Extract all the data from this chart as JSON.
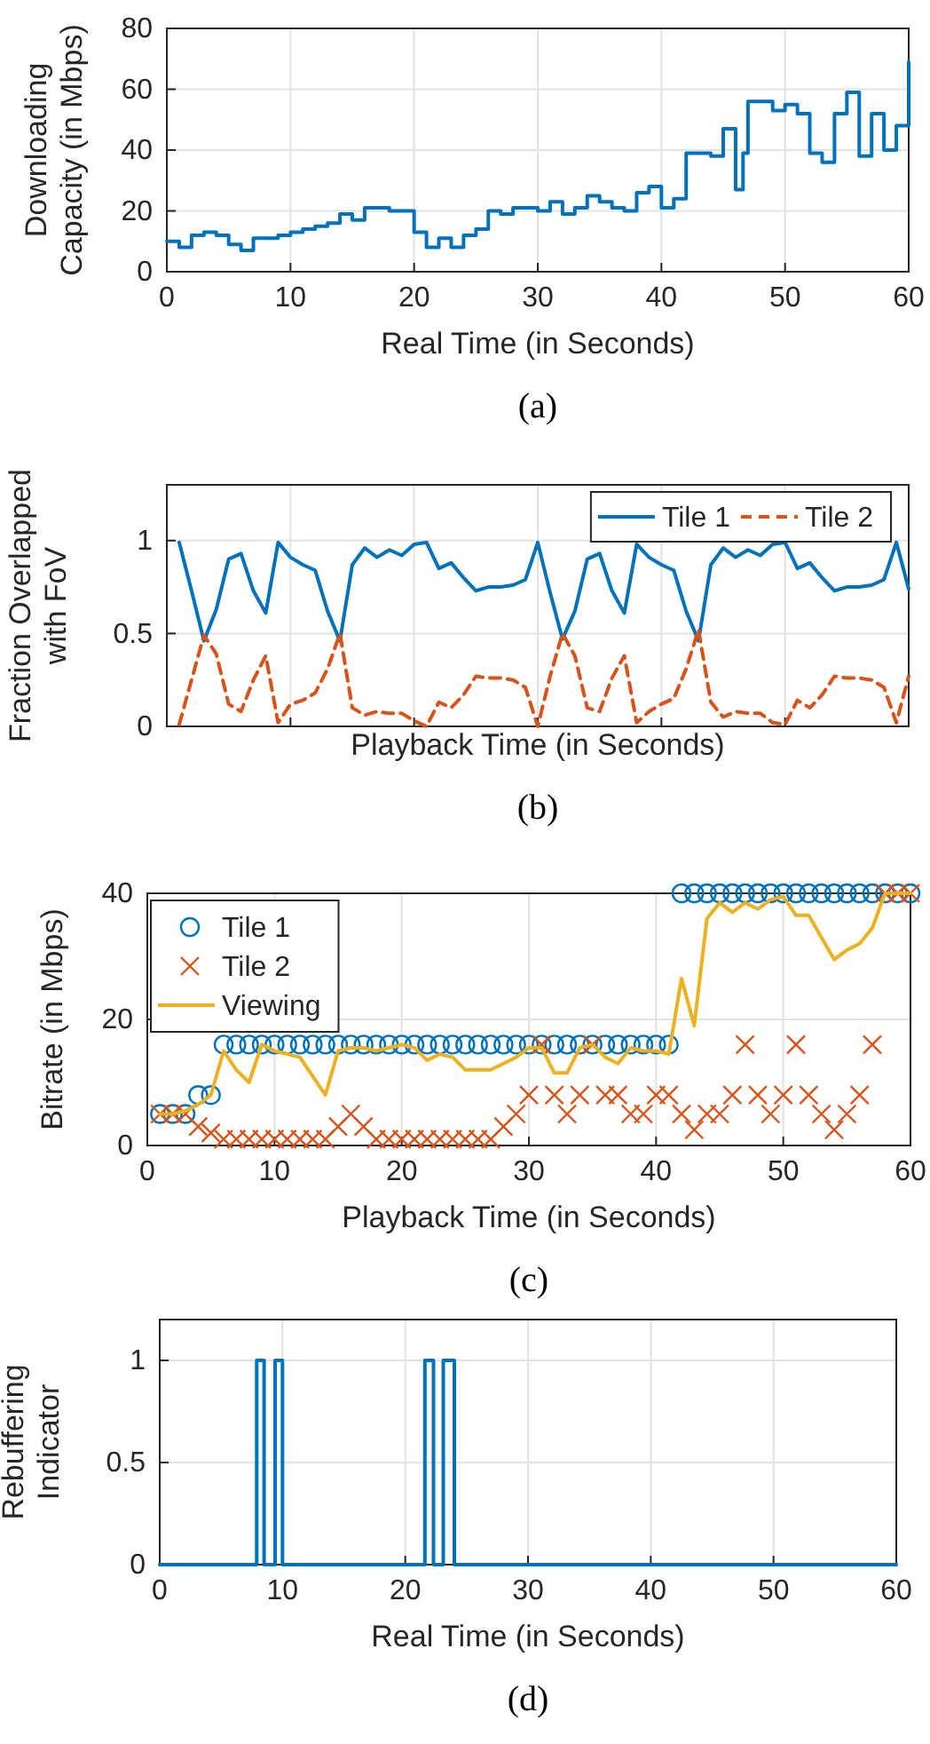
{
  "chart_data": [
    {
      "type": "step",
      "xlabel": "Real Time (in Seconds)",
      "ylabel": "Downloading\nCapacity (in Mbps)",
      "annotations": [
        "(a)"
      ],
      "xlim": [
        0,
        60
      ],
      "xticks": [
        0,
        10,
        20,
        30,
        40,
        50,
        60
      ],
      "ylim": [
        0,
        80
      ],
      "yticks": [
        0,
        20,
        40,
        60,
        80
      ],
      "grid": true,
      "legend": false,
      "series": [
        {
          "color": "#0072bd",
          "x": [
            0,
            1,
            2,
            3,
            4,
            5,
            6,
            7,
            8,
            9,
            10,
            11,
            12,
            13,
            14,
            15,
            16,
            17,
            18,
            19,
            20,
            21,
            22,
            23,
            24,
            25,
            26,
            27,
            28,
            29,
            30,
            31,
            32,
            33,
            34,
            35,
            36,
            37,
            38,
            39,
            40,
            41,
            42,
            43,
            44,
            45,
            46,
            46.6,
            47,
            48,
            49,
            50,
            51,
            52,
            53,
            54,
            55,
            56,
            57,
            58,
            59,
            60
          ],
          "values": [
            10,
            8,
            12,
            13,
            12,
            9,
            7,
            11,
            11,
            12,
            13,
            14,
            15,
            16,
            19,
            17,
            21,
            21,
            20,
            20,
            13,
            8,
            11,
            8,
            12,
            14,
            20,
            19,
            21,
            21,
            20,
            23,
            19,
            21,
            25,
            23,
            21,
            20,
            26,
            28,
            21,
            24,
            39,
            39,
            38,
            47,
            27,
            39,
            56,
            56,
            53,
            55,
            52,
            39,
            36,
            52,
            59,
            38,
            52,
            40,
            48,
            69
          ]
        }
      ]
    },
    {
      "type": "line",
      "xlabel": "Playback Time (in Seconds)",
      "ylabel": "Fraction Overlapped\nwith FoV",
      "annotations": [
        "(b)"
      ],
      "xlim": [
        0,
        60
      ],
      "xticks": [
        0,
        10,
        20,
        30,
        40,
        50,
        60
      ],
      "ylim": [
        0,
        1.3
      ],
      "yticks": [
        0,
        0.5,
        1
      ],
      "tick_labels": "y",
      "grid": true,
      "legend": "top right",
      "x": [
        1,
        2,
        3,
        4,
        5,
        6,
        7,
        8,
        9,
        10,
        11,
        12,
        13,
        14,
        15,
        16,
        17,
        18,
        19,
        20,
        21,
        22,
        23,
        24,
        25,
        26,
        27,
        28,
        29,
        30,
        31,
        32,
        33,
        34,
        35,
        36,
        37,
        38,
        39,
        40,
        41,
        42,
        43,
        44,
        45,
        46,
        47,
        48,
        49,
        50,
        51,
        52,
        53,
        54,
        55,
        56,
        57,
        58,
        59,
        60
      ],
      "series": [
        {
          "name": "Tile 1",
          "color": "#0072bd",
          "line_style": "solid",
          "values": [
            0.99,
            0.73,
            0.46,
            0.63,
            0.9,
            0.93,
            0.73,
            0.61,
            0.99,
            0.91,
            0.87,
            0.84,
            0.62,
            0.46,
            0.87,
            0.96,
            0.91,
            0.95,
            0.92,
            0.98,
            0.99,
            0.85,
            0.88,
            0.8,
            0.73,
            0.75,
            0.75,
            0.76,
            0.79,
            0.99,
            0.72,
            0.47,
            0.62,
            0.9,
            0.93,
            0.73,
            0.61,
            0.98,
            0.91,
            0.87,
            0.84,
            0.62,
            0.46,
            0.87,
            0.96,
            0.91,
            0.95,
            0.92,
            0.98,
            0.99,
            0.85,
            0.88,
            0.8,
            0.73,
            0.75,
            0.75,
            0.76,
            0.79,
            0.99,
            0.74
          ]
        },
        {
          "name": "Tile 2",
          "color": "#d95319",
          "line_style": "dashed",
          "values": [
            0.01,
            0.25,
            0.49,
            0.39,
            0.12,
            0.08,
            0.25,
            0.38,
            0.02,
            0.12,
            0.14,
            0.18,
            0.31,
            0.5,
            0.1,
            0.06,
            0.08,
            0.07,
            0.07,
            0.03,
            0,
            0.13,
            0.1,
            0.17,
            0.27,
            0.26,
            0.26,
            0.25,
            0.21,
            0,
            0.27,
            0.5,
            0.38,
            0.1,
            0.08,
            0.26,
            0.38,
            0.02,
            0.08,
            0.12,
            0.15,
            0.31,
            0.52,
            0.13,
            0.05,
            0.08,
            0.07,
            0.07,
            0.02,
            0.01,
            0.14,
            0.1,
            0.17,
            0.27,
            0.26,
            0.26,
            0.25,
            0.21,
            0.02,
            0.27
          ]
        }
      ]
    },
    {
      "type": "scatter",
      "xlabel": "Playback Time (in Seconds)",
      "ylabel": "Bitrate (in Mbps)",
      "annotations": [
        "(c)"
      ],
      "xlim": [
        0,
        60
      ],
      "xticks": [
        0,
        10,
        20,
        30,
        40,
        50,
        60
      ],
      "ylim": [
        0,
        40
      ],
      "yticks": [
        0,
        20,
        40
      ],
      "grid": true,
      "legend": "top left",
      "x": [
        1,
        2,
        3,
        4,
        5,
        6,
        7,
        8,
        9,
        10,
        11,
        12,
        13,
        14,
        15,
        16,
        17,
        18,
        19,
        20,
        21,
        22,
        23,
        24,
        25,
        26,
        27,
        28,
        29,
        30,
        31,
        32,
        33,
        34,
        35,
        36,
        37,
        38,
        39,
        40,
        41,
        42,
        43,
        44,
        45,
        46,
        47,
        48,
        49,
        50,
        51,
        52,
        53,
        54,
        55,
        56,
        57,
        58,
        59,
        60
      ],
      "series": [
        {
          "name": "Tile 1",
          "color": "#0072bd",
          "marker": "circle",
          "values": [
            5,
            5,
            5,
            8,
            8,
            16,
            16,
            16,
            16,
            16,
            16,
            16,
            16,
            16,
            16,
            16,
            16,
            16,
            16,
            16,
            16,
            16,
            16,
            16,
            16,
            16,
            16,
            16,
            16,
            16,
            16,
            16,
            16,
            16,
            16,
            16,
            16,
            16,
            16,
            16,
            16,
            40,
            40,
            40,
            40,
            40,
            40,
            40,
            40,
            40,
            40,
            40,
            40,
            40,
            40,
            40,
            40,
            40,
            40,
            40
          ]
        },
        {
          "name": "Tile 2",
          "color": "#d95319",
          "marker": "cross",
          "values": [
            5,
            5,
            5,
            3,
            2,
            1,
            1,
            1,
            1,
            1,
            1,
            1,
            1,
            1,
            3,
            5,
            3,
            1,
            1,
            1,
            1,
            1,
            1,
            1,
            1,
            1,
            1,
            3,
            5,
            8,
            16,
            8,
            5,
            8,
            16,
            8,
            8,
            5,
            5,
            8,
            8,
            5,
            2.5,
            5,
            5,
            8,
            16,
            8,
            5,
            8,
            16,
            8,
            5,
            2.5,
            5,
            8,
            16,
            40,
            40,
            40
          ]
        },
        {
          "name": "Viewing",
          "color": "#edb120",
          "type": "line",
          "marker": "none",
          "values": [
            5,
            5,
            5.5,
            6.5,
            8,
            15,
            12,
            10,
            16,
            15,
            14.5,
            14,
            11,
            8,
            15,
            15.5,
            15.5,
            15,
            15.5,
            16,
            15.5,
            13.5,
            14.5,
            14,
            12,
            12,
            12,
            13,
            14,
            15.5,
            15.5,
            11.5,
            11.5,
            15.5,
            16,
            14,
            13,
            15.5,
            15,
            15,
            14.5,
            26.5,
            19,
            36,
            38.5,
            37,
            38.5,
            37.5,
            39,
            39.5,
            36.5,
            36.5,
            33,
            29.5,
            31,
            32,
            34.5,
            40,
            40,
            40
          ]
        }
      ]
    },
    {
      "type": "step",
      "xlabel": "Real Time (in Seconds)",
      "ylabel": "Rebuffering\nIndicator",
      "annotations": [
        "(d)"
      ],
      "xlim": [
        0,
        60
      ],
      "xticks": [
        0,
        10,
        20,
        30,
        40,
        50,
        60
      ],
      "ylim": [
        0,
        1.2
      ],
      "yticks": [
        0,
        0.5,
        1
      ],
      "grid": true,
      "legend": false,
      "series": [
        {
          "color": "#0072bd",
          "x": [
            0,
            7.9,
            8.5,
            9.4,
            10,
            21.6,
            22.3,
            23.1,
            24,
            60
          ],
          "values": [
            0,
            1,
            0,
            1,
            0,
            1,
            0,
            1,
            0,
            0
          ]
        }
      ]
    }
  ]
}
